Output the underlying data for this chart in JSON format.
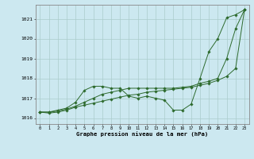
{
  "xlabel": "Graphe pression niveau de la mer (hPa)",
  "background_color": "#cce8f0",
  "grid_color": "#aacccc",
  "line_color": "#2d6a2d",
  "ylim": [
    1015.7,
    1021.7
  ],
  "xlim": [
    -0.5,
    23.5
  ],
  "yticks": [
    1016,
    1017,
    1018,
    1019,
    1020,
    1021
  ],
  "xticks": [
    0,
    1,
    2,
    3,
    4,
    5,
    6,
    7,
    8,
    9,
    10,
    11,
    12,
    13,
    14,
    15,
    16,
    17,
    18,
    19,
    20,
    21,
    22,
    23
  ],
  "series1": [
    1016.3,
    1016.3,
    1016.4,
    1016.5,
    1016.8,
    1017.4,
    1017.6,
    1017.6,
    1017.5,
    1017.5,
    1017.1,
    1017.0,
    1017.1,
    1017.0,
    1016.9,
    1016.4,
    1016.4,
    1016.7,
    1018.0,
    1019.35,
    1020.0,
    1021.05,
    1021.2,
    1021.45
  ],
  "series2": [
    1016.3,
    1016.3,
    1016.35,
    1016.45,
    1016.6,
    1016.8,
    1017.0,
    1017.2,
    1017.3,
    1017.4,
    1017.5,
    1017.5,
    1017.5,
    1017.5,
    1017.5,
    1017.5,
    1017.55,
    1017.6,
    1017.75,
    1017.85,
    1018.0,
    1019.0,
    1020.5,
    1021.45
  ],
  "series3": [
    1016.3,
    1016.25,
    1016.3,
    1016.4,
    1016.55,
    1016.65,
    1016.75,
    1016.85,
    1016.95,
    1017.05,
    1017.15,
    1017.2,
    1017.3,
    1017.35,
    1017.4,
    1017.45,
    1017.5,
    1017.55,
    1017.65,
    1017.75,
    1017.9,
    1018.1,
    1018.5,
    1021.45
  ]
}
